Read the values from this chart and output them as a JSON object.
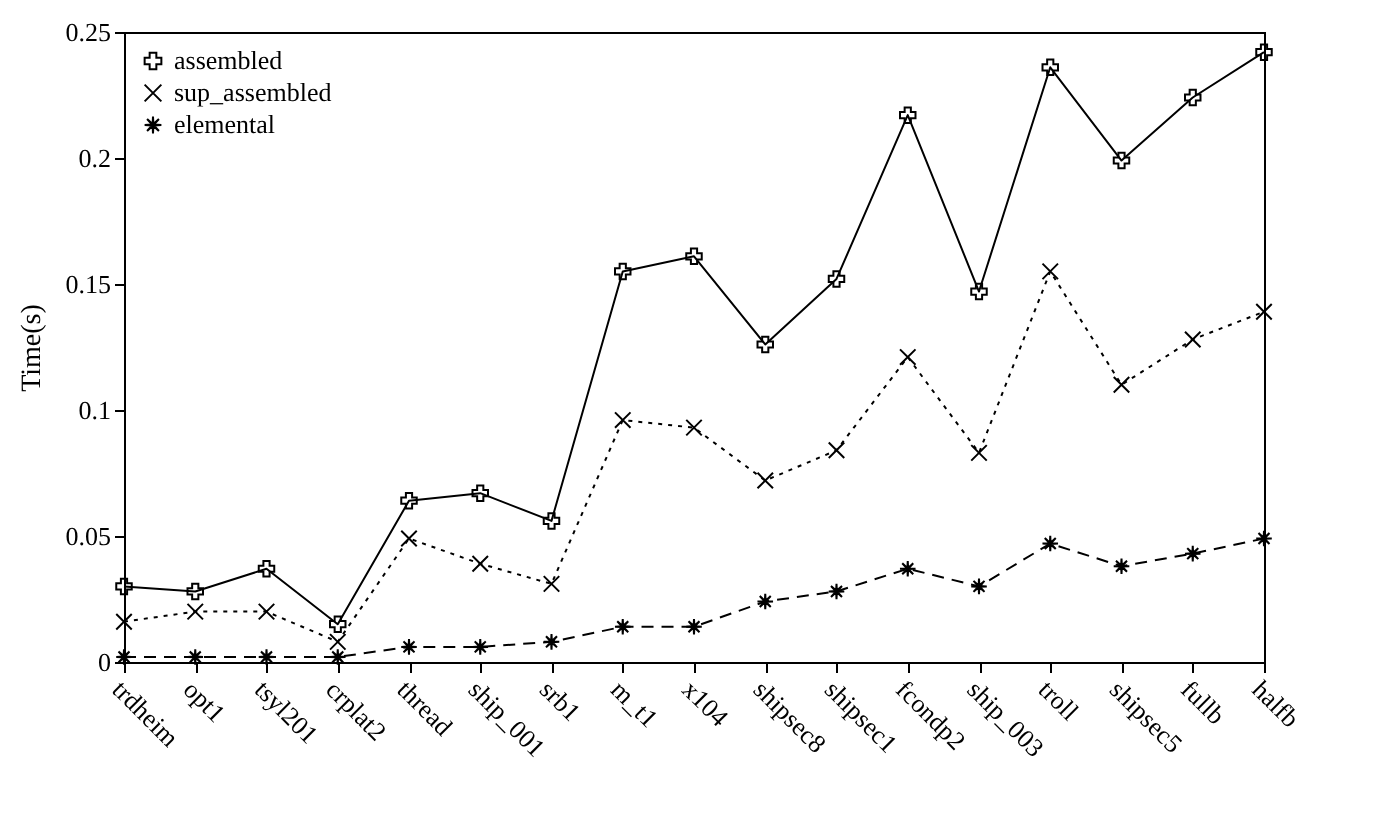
{
  "chart_data": {
    "type": "line",
    "ylabel": "Time(s)",
    "categories": [
      "trdheim",
      "opt1",
      "tsyl201",
      "crplat2",
      "thread",
      "ship_001",
      "srb1",
      "m_t1",
      "x104",
      "shipsec8",
      "shipsec1",
      "fcondp2",
      "ship_003",
      "troll",
      "shipsec5",
      "fullb",
      "halfb"
    ],
    "series": [
      {
        "name": "assembled",
        "color": "#000000",
        "marker": "cross",
        "line_style": "solid",
        "values": [
          0.03,
          0.028,
          0.037,
          0.015,
          0.064,
          0.067,
          0.056,
          0.155,
          0.161,
          0.126,
          0.152,
          0.217,
          0.147,
          0.236,
          0.199,
          0.224,
          0.242
        ]
      },
      {
        "name": "sup_assembled",
        "color": "#000000",
        "marker": "x",
        "line_style": "dotted",
        "values": [
          0.016,
          0.02,
          0.02,
          0.008,
          0.049,
          0.039,
          0.031,
          0.096,
          0.093,
          0.072,
          0.084,
          0.121,
          0.083,
          0.155,
          0.11,
          0.128,
          0.139
        ]
      },
      {
        "name": "elemental",
        "color": "#000000",
        "marker": "star",
        "line_style": "dashed",
        "values": [
          0.002,
          0.002,
          0.002,
          0.002,
          0.006,
          0.006,
          0.008,
          0.014,
          0.014,
          0.024,
          0.028,
          0.037,
          0.03,
          0.047,
          0.038,
          0.043,
          0.049
        ]
      }
    ],
    "ylim": [
      0,
      0.25
    ],
    "yticks": [
      0,
      0.05,
      0.1,
      0.15,
      0.2,
      0.25
    ],
    "grid": false,
    "legend": "top left"
  }
}
